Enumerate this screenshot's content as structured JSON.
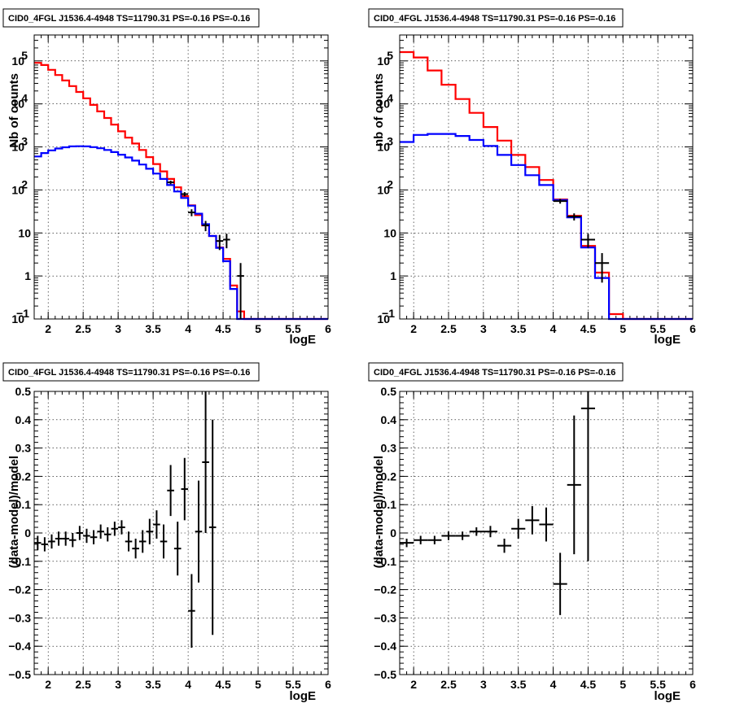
{
  "chart_data": [
    {
      "id": "p1",
      "type": "line",
      "title": "CID0_4FGL J1536.4-4948 TS=11790.31 PS=-0.16 PS=-0.16",
      "xlabel": "logE",
      "ylabel": "Nb of counts",
      "xlim": [
        1.8,
        6.0
      ],
      "ylim": [
        0.1,
        400000
      ],
      "yscale": "log",
      "grid": true,
      "xticks": [
        "2",
        "2.5",
        "3",
        "3.5",
        "4",
        "4.5",
        "5",
        "5.5",
        "6"
      ],
      "yticks": [
        {
          "v": 0.1,
          "label": "10",
          "sup": "−1"
        },
        {
          "v": 1,
          "label": "1",
          "sup": ""
        },
        {
          "v": 10,
          "label": "10",
          "sup": ""
        },
        {
          "v": 100,
          "label": "10",
          "sup": "2"
        },
        {
          "v": 1000,
          "label": "10",
          "sup": "3"
        },
        {
          "v": 10000,
          "label": "10",
          "sup": "4"
        },
        {
          "v": 100000,
          "label": "10",
          "sup": "5"
        }
      ],
      "series": [
        {
          "color": "#ff0000",
          "bin_width": 0.1,
          "x": [
            1.8,
            1.9,
            2.0,
            2.1,
            2.2,
            2.3,
            2.4,
            2.5,
            2.6,
            2.7,
            2.8,
            2.9,
            3.0,
            3.1,
            3.2,
            3.3,
            3.4,
            3.5,
            3.6,
            3.7,
            3.8,
            3.9,
            4.0,
            4.1,
            4.2,
            4.3,
            4.4,
            4.5,
            4.6,
            4.7,
            4.8,
            4.9,
            5.0,
            5.1,
            5.2,
            5.3,
            5.4,
            5.5,
            5.6,
            5.7,
            5.8,
            5.9
          ],
          "values": [
            90000,
            80000,
            62000,
            47000,
            35000,
            26000,
            19000,
            13500,
            9500,
            6700,
            4700,
            3300,
            2300,
            1650,
            1200,
            850,
            580,
            400,
            270,
            180,
            115,
            72,
            44,
            26,
            15,
            8.5,
            4.6,
            2.5,
            0.6,
            0.15,
            0.1,
            0.1,
            0.1,
            0.1,
            0.1,
            0.1,
            0.1,
            0.1,
            0.1,
            0.1,
            0.1,
            0.1
          ]
        },
        {
          "color": "#0000ff",
          "bin_width": 0.1,
          "x": [
            1.8,
            1.9,
            2.0,
            2.1,
            2.2,
            2.3,
            2.4,
            2.5,
            2.6,
            2.7,
            2.8,
            2.9,
            3.0,
            3.1,
            3.2,
            3.3,
            3.4,
            3.5,
            3.6,
            3.7,
            3.8,
            3.9,
            4.0,
            4.1,
            4.2,
            4.3,
            4.4,
            4.5,
            4.6,
            4.7,
            4.8,
            4.9,
            5.0,
            5.1,
            5.2,
            5.3,
            5.4,
            5.5,
            5.6,
            5.7,
            5.8,
            5.9
          ],
          "values": [
            600,
            720,
            830,
            920,
            980,
            1030,
            1040,
            1030,
            990,
            930,
            850,
            760,
            660,
            570,
            480,
            390,
            310,
            240,
            180,
            130,
            92,
            65,
            43,
            28,
            16,
            8.5,
            4.5,
            2.2,
            0.5,
            0.1,
            0.1,
            0.1,
            0.1,
            0.1,
            0.1,
            0.1,
            0.1,
            0.1,
            0.1,
            0.1,
            0.1,
            0.1
          ]
        }
      ],
      "points": {
        "x": [
          3.75,
          3.95,
          4.05,
          4.25,
          4.45,
          4.55,
          4.75
        ],
        "y": [
          150,
          80,
          30,
          15,
          6.5,
          7,
          1
        ],
        "xerr": 0.05,
        "yerr_lo": [
          14,
          9,
          5.5,
          4,
          2.5,
          2.6,
          0.9
        ],
        "yerr_hi": [
          14,
          9,
          5.5,
          4,
          2.5,
          2.6,
          1.0
        ]
      }
    },
    {
      "id": "p2",
      "type": "line",
      "title": "CID0_4FGL J1536.4-4948 TS=11790.31 PS=-0.16 PS=-0.16",
      "xlabel": "logE",
      "ylabel": "nb of counts",
      "xlim": [
        1.8,
        6.0
      ],
      "ylim": [
        0.1,
        400000
      ],
      "yscale": "log",
      "grid": true,
      "xticks": [
        "2",
        "2.5",
        "3",
        "3.5",
        "4",
        "4.5",
        "5",
        "5.5",
        "6"
      ],
      "yticks": [
        {
          "v": 0.1,
          "label": "10",
          "sup": "−1"
        },
        {
          "v": 1,
          "label": "1",
          "sup": ""
        },
        {
          "v": 10,
          "label": "10",
          "sup": ""
        },
        {
          "v": 100,
          "label": "10",
          "sup": "2"
        },
        {
          "v": 1000,
          "label": "10",
          "sup": "3"
        },
        {
          "v": 10000,
          "label": "10",
          "sup": "4"
        },
        {
          "v": 100000,
          "label": "10",
          "sup": "5"
        }
      ],
      "series": [
        {
          "color": "#ff0000",
          "bin_width": 0.2,
          "x": [
            1.8,
            2.0,
            2.2,
            2.4,
            2.6,
            2.8,
            3.0,
            3.2,
            3.4,
            3.6,
            3.8,
            4.0,
            4.2,
            4.4,
            4.6,
            4.8,
            5.0,
            5.2,
            5.4,
            5.6,
            5.8
          ],
          "values": [
            160000,
            120000,
            60000,
            28000,
            13000,
            6200,
            2900,
            1400,
            650,
            340,
            170,
            60,
            25,
            5,
            1.2,
            0.13,
            0.1,
            0.1,
            0.1,
            0.1,
            0.1
          ]
        },
        {
          "color": "#0000ff",
          "bin_width": 0.2,
          "x": [
            1.8,
            2.0,
            2.2,
            2.4,
            2.6,
            2.8,
            3.0,
            3.2,
            3.4,
            3.6,
            3.8,
            4.0,
            4.2,
            4.4,
            4.6,
            4.8,
            5.0,
            5.2,
            5.4,
            5.6,
            5.8
          ],
          "values": [
            1300,
            1900,
            2000,
            2000,
            1800,
            1450,
            1050,
            650,
            380,
            220,
            130,
            58,
            23,
            4.6,
            0.9,
            0.1,
            0.1,
            0.1,
            0.1,
            0.1,
            0.1
          ]
        }
      ],
      "points": {
        "x": [
          4.1,
          4.3,
          4.5,
          4.7
        ],
        "y": [
          55,
          24,
          7,
          2
        ],
        "xerr": 0.1,
        "yerr_lo": [
          7,
          4.5,
          2.5,
          1.3
        ],
        "yerr_hi": [
          7,
          4.5,
          2.5,
          1.4
        ]
      }
    },
    {
      "id": "p3",
      "type": "scatter",
      "title": "CID0_4FGL J1536.4-4948 TS=11790.31 PS=-0.16 PS=-0.16",
      "xlabel": "logE",
      "ylabel": "(data-model)/model",
      "xlim": [
        1.8,
        6.0
      ],
      "ylim": [
        -0.5,
        0.5
      ],
      "yscale": "linear",
      "grid": true,
      "xticks": [
        "2",
        "2.5",
        "3",
        "3.5",
        "4",
        "4.5",
        "5",
        "5.5",
        "6"
      ],
      "yticks": [
        {
          "v": -0.5,
          "label": "−0.5",
          "sup": ""
        },
        {
          "v": -0.4,
          "label": "−0.4",
          "sup": ""
        },
        {
          "v": -0.3,
          "label": "−0.3",
          "sup": ""
        },
        {
          "v": -0.2,
          "label": "−0.2",
          "sup": ""
        },
        {
          "v": -0.1,
          "label": "−0.1",
          "sup": ""
        },
        {
          "v": 0,
          "label": "0",
          "sup": ""
        },
        {
          "v": 0.1,
          "label": "0.1",
          "sup": ""
        },
        {
          "v": 0.2,
          "label": "0.2",
          "sup": ""
        },
        {
          "v": 0.3,
          "label": "0.3",
          "sup": ""
        },
        {
          "v": 0.4,
          "label": "0.4",
          "sup": ""
        },
        {
          "v": 0.5,
          "label": "0.5",
          "sup": ""
        }
      ],
      "points": {
        "x": [
          1.85,
          1.95,
          2.05,
          2.15,
          2.25,
          2.35,
          2.45,
          2.55,
          2.65,
          2.75,
          2.85,
          2.95,
          3.05,
          3.15,
          3.25,
          3.35,
          3.45,
          3.55,
          3.65,
          3.75,
          3.85,
          3.95,
          4.05,
          4.15,
          4.25,
          4.35
        ],
        "y": [
          -0.035,
          -0.04,
          -0.03,
          -0.02,
          -0.02,
          -0.025,
          0.0,
          -0.01,
          -0.015,
          0.005,
          -0.005,
          0.015,
          0.02,
          -0.03,
          -0.055,
          -0.03,
          0.005,
          0.03,
          -0.03,
          0.15,
          -0.055,
          0.155,
          -0.275,
          0.005,
          0.25,
          0.02
        ],
        "xerr": 0.05,
        "yerr": [
          0.025,
          0.025,
          0.025,
          0.025,
          0.025,
          0.025,
          0.025,
          0.025,
          0.025,
          0.025,
          0.025,
          0.025,
          0.025,
          0.035,
          0.035,
          0.04,
          0.045,
          0.05,
          0.06,
          0.09,
          0.095,
          0.11,
          0.13,
          0.18,
          0.25,
          0.38
        ]
      }
    },
    {
      "id": "p4",
      "type": "scatter",
      "title": "CID0_4FGL J1536.4-4948 TS=11790.31 PS=-0.16 PS=-0.16",
      "xlabel": "logE",
      "ylabel": "(data-model)/model",
      "xlim": [
        1.8,
        6.0
      ],
      "ylim": [
        -0.5,
        0.5
      ],
      "yscale": "linear",
      "grid": true,
      "xticks": [
        "2",
        "2.5",
        "3",
        "3.5",
        "4",
        "4.5",
        "5",
        "5.5",
        "6"
      ],
      "yticks": [
        {
          "v": -0.5,
          "label": "−0.5",
          "sup": ""
        },
        {
          "v": -0.4,
          "label": "−0.4",
          "sup": ""
        },
        {
          "v": -0.3,
          "label": "−0.3",
          "sup": ""
        },
        {
          "v": -0.2,
          "label": "−0.2",
          "sup": ""
        },
        {
          "v": -0.1,
          "label": "−0.1",
          "sup": ""
        },
        {
          "v": 0,
          "label": "0",
          "sup": ""
        },
        {
          "v": 0.1,
          "label": "0.1",
          "sup": ""
        },
        {
          "v": 0.2,
          "label": "0.2",
          "sup": ""
        },
        {
          "v": 0.3,
          "label": "0.3",
          "sup": ""
        },
        {
          "v": 0.4,
          "label": "0.4",
          "sup": ""
        },
        {
          "v": 0.5,
          "label": "0.5",
          "sup": ""
        }
      ],
      "points": {
        "x": [
          1.9,
          2.1,
          2.3,
          2.5,
          2.7,
          2.9,
          3.1,
          3.3,
          3.5,
          3.7,
          3.9,
          4.1,
          4.3,
          4.5
        ],
        "y": [
          -0.035,
          -0.025,
          -0.025,
          -0.01,
          -0.01,
          0.005,
          0.005,
          -0.045,
          0.015,
          0.045,
          0.03,
          -0.18,
          0.17,
          0.44
        ],
        "xerr": 0.1,
        "yerr": [
          0.015,
          0.015,
          0.015,
          0.015,
          0.015,
          0.015,
          0.02,
          0.025,
          0.035,
          0.05,
          0.06,
          0.11,
          0.245,
          0.54
        ]
      }
    }
  ]
}
